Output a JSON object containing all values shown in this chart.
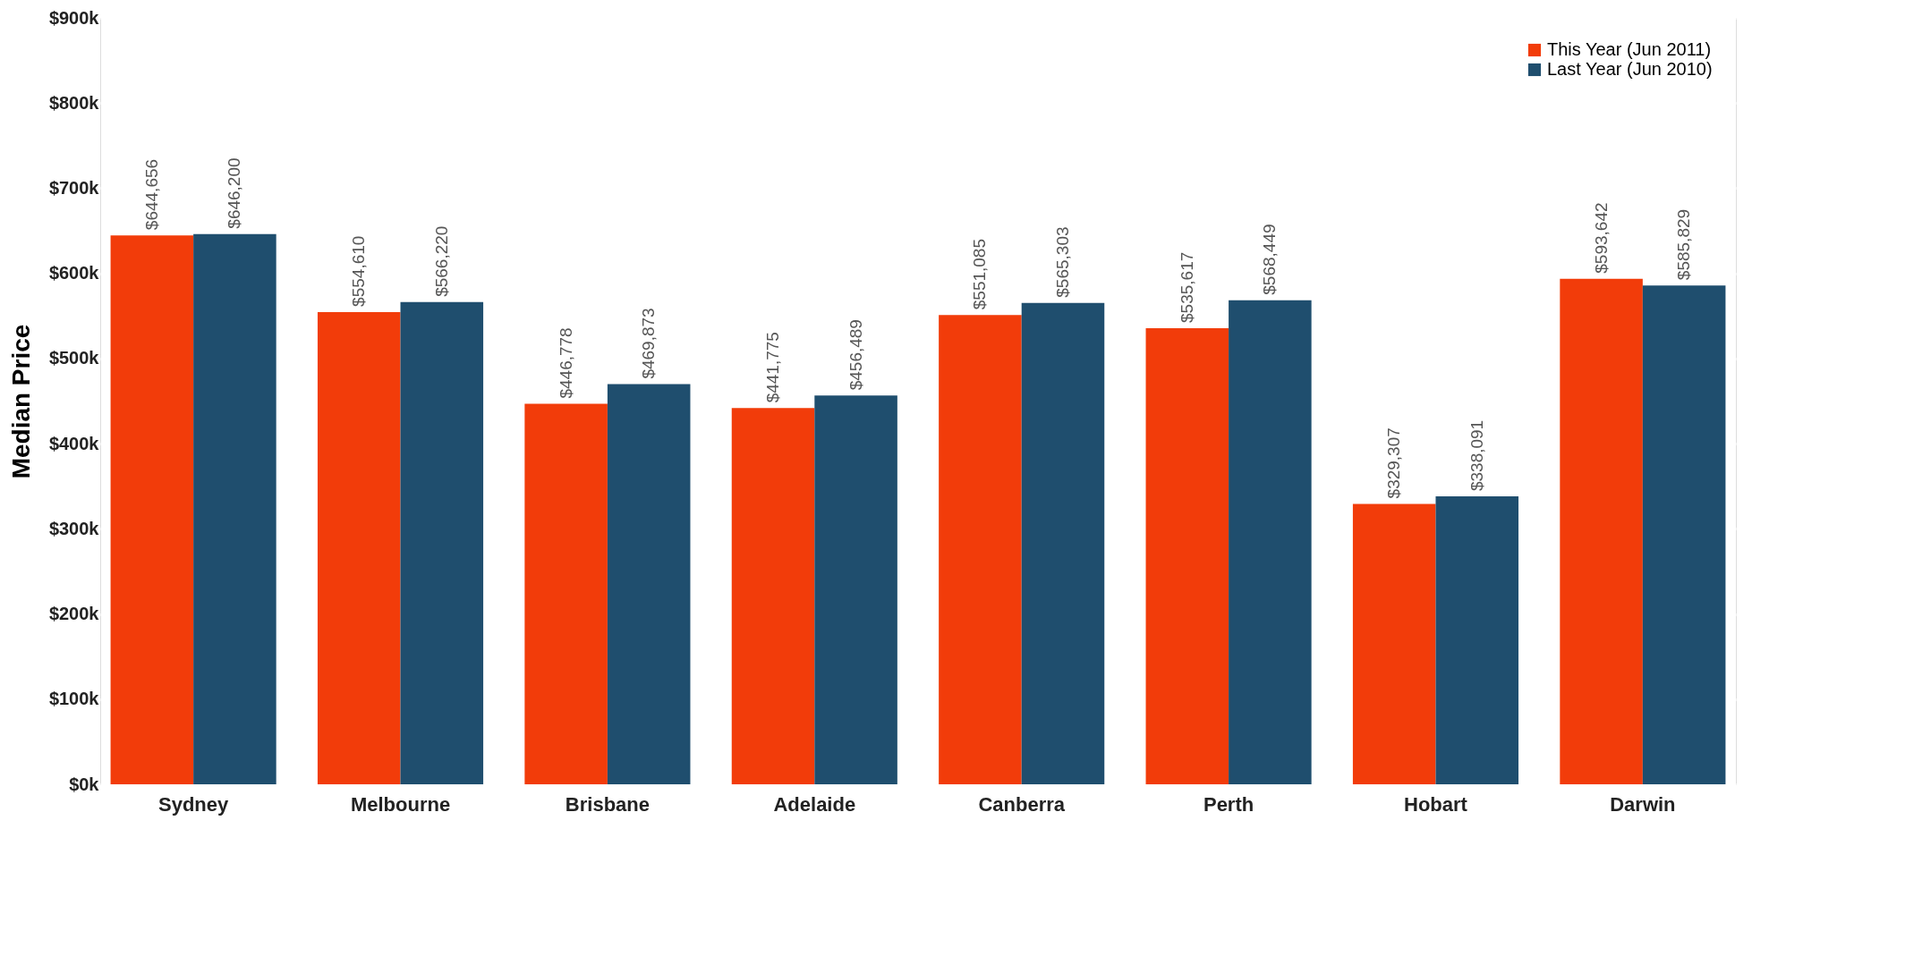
{
  "chart_data": {
    "type": "bar",
    "ylabel": "Median Price",
    "categories": [
      "Sydney",
      "Melbourne",
      "Brisbane",
      "Adelaide",
      "Canberra",
      "Perth",
      "Hobart",
      "Darwin"
    ],
    "series": [
      {
        "name": "This Year (Jun 2011)",
        "color": "#f23c0a",
        "values": [
          644656,
          554610,
          446778,
          441775,
          551085,
          535617,
          329307,
          593642
        ],
        "value_labels": [
          "$644,656",
          "$554,610",
          "$446,778",
          "$441,775",
          "$551,085",
          "$535,617",
          "$329,307",
          "$593,642"
        ]
      },
      {
        "name": "Last Year (Jun 2010)",
        "color": "#1f4e6e",
        "values": [
          646200,
          566220,
          469873,
          456489,
          565303,
          568449,
          338091,
          585829
        ],
        "value_labels": [
          "$646,200",
          "$566,220",
          "$469,873",
          "$456,489",
          "$565,303",
          "$568,449",
          "$338,091",
          "$585,829"
        ]
      }
    ],
    "ylim": [
      0,
      900000
    ],
    "yticks": [
      {
        "value": 0,
        "label": "$0k"
      },
      {
        "value": 100000,
        "label": "$100k"
      },
      {
        "value": 200000,
        "label": "$200k"
      },
      {
        "value": 300000,
        "label": "$300k"
      },
      {
        "value": 400000,
        "label": "$400k"
      },
      {
        "value": 500000,
        "label": "$500k"
      },
      {
        "value": 600000,
        "label": "$600k"
      },
      {
        "value": 700000,
        "label": "$700k"
      },
      {
        "value": 800000,
        "label": "$800k"
      },
      {
        "value": 900000,
        "label": "$900k"
      }
    ],
    "grid": "y",
    "legend": "top right"
  }
}
